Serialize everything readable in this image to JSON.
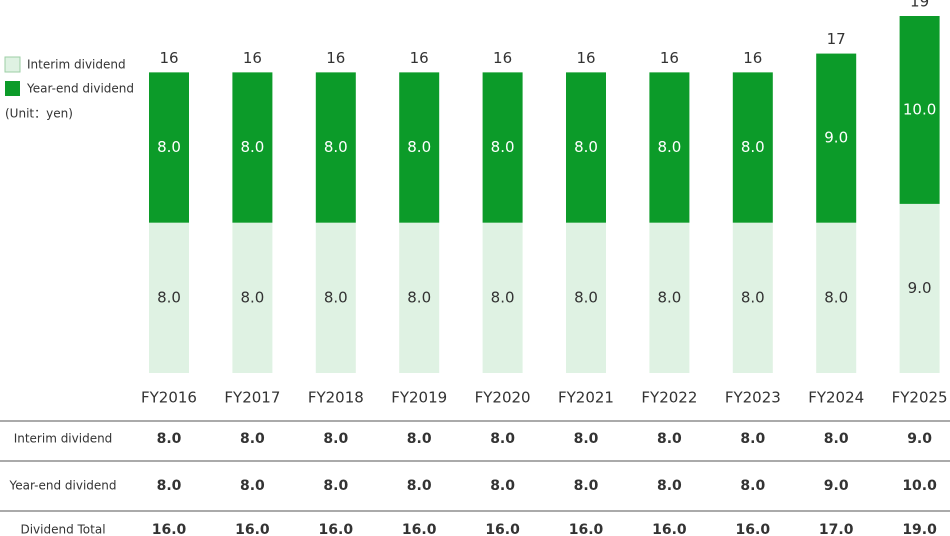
{
  "chart_data": {
    "type": "bar",
    "stacked": true,
    "categories": [
      "FY2016",
      "FY2017",
      "FY2018",
      "FY2019",
      "FY2020",
      "FY2021",
      "FY2022",
      "FY2023",
      "FY2024",
      "FY2025"
    ],
    "series": [
      {
        "name": "Interim dividend",
        "color": "#dff2e3",
        "label_color": "#333333",
        "values": [
          8,
          8,
          8,
          8,
          8,
          8,
          8,
          8,
          8,
          9
        ],
        "value_labels": [
          "8.0",
          "8.0",
          "8.0",
          "8.0",
          "8.0",
          "8.0",
          "8.0",
          "8.0",
          "8.0",
          "9.0"
        ]
      },
      {
        "name": "Year-end dividend",
        "color": "#0c9b29",
        "label_color": "#ffffff",
        "values": [
          8,
          8,
          8,
          8,
          8,
          8,
          8,
          8,
          9,
          10
        ],
        "value_labels": [
          "8.0",
          "8.0",
          "8.0",
          "8.0",
          "8.0",
          "8.0",
          "8.0",
          "8.0",
          "9.0",
          "10.0"
        ]
      }
    ],
    "totals": {
      "name": "Dividend Total",
      "values": [
        16,
        16,
        16,
        16,
        16,
        16,
        16,
        16,
        17,
        19
      ],
      "value_labels": [
        "16.0",
        "16.0",
        "16.0",
        "16.0",
        "16.0",
        "16.0",
        "16.0",
        "16.0",
        "17.0",
        "19.0"
      ]
    },
    "unit_note": "(Unit：yen)",
    "ylim": [
      0,
      19
    ]
  }
}
